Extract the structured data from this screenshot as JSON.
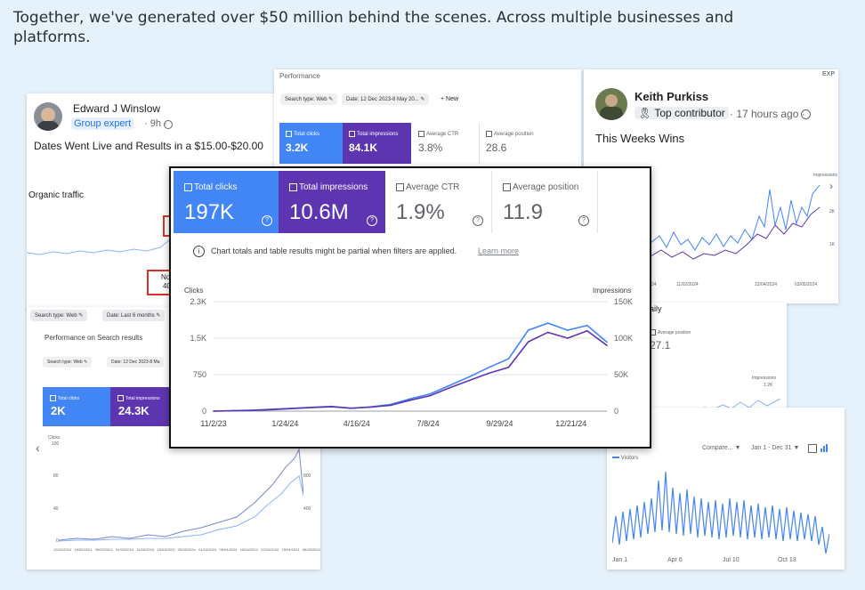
{
  "headline": "Together, we've generated over $50 million behind the scenes. Across multiple businesses and platforms.",
  "colors": {
    "clicks": "#4285f4",
    "impressions": "#5e35b1",
    "page_bg": "#e5f1fb"
  },
  "post_edward": {
    "name": "Edward J Winslow",
    "badge": "Group expert",
    "time": "· 9h ·",
    "text": "Dates Went Live and Results in a $15.00-$20.00",
    "organic_label": "Organic traffic",
    "note1": "No",
    "note2": "40"
  },
  "post_keith": {
    "name": "Keith Purkiss",
    "badge": "Top contributor",
    "time": "· 17 hours ago ·",
    "text": "This Weeks Wins",
    "y_label": "Impressions",
    "y_ticks": [
      "2K",
      "1K"
    ],
    "x_ticks": [
      "11/02/2024",
      "22/04/2024",
      "03/05/2024"
    ],
    "export_label": "EXP",
    "x_partial": "24"
  },
  "gsc_top": {
    "title": "Performance",
    "chip1": "Search type: Web",
    "chip2": "Date: 12 Dec 2023-8 May 20...",
    "new_label": "+  New",
    "tiles": [
      {
        "label": "Total clicks",
        "value": "3.2K"
      },
      {
        "label": "Total impressions",
        "value": "84.1K"
      },
      {
        "label": "Average CTR",
        "value": "3.8%"
      },
      {
        "label": "Average position",
        "value": "28.6"
      }
    ]
  },
  "gsc_left": {
    "chip1": "Search type: Web",
    "chip2": "Date: Last 6 months",
    "title": "Performance on Search results",
    "chip3": "Search type: Web",
    "chip4": "Date: 12 Dec 2023-8 Ma",
    "tiles": [
      {
        "label": "Total clicks",
        "value": "2K"
      },
      {
        "label": "Total impressions",
        "value": "24.3K"
      }
    ],
    "y_label": "Clicks",
    "y_ticks": [
      "100",
      "80",
      "40",
      "0"
    ],
    "y2_ticks": [
      "800",
      "400"
    ],
    "x_ticks": [
      "12/02/2024",
      "19/02/2024",
      "26/02/2024",
      "04/03/2024",
      "11/03/2024",
      "18/03/2024",
      "25/03/2024",
      "01/04/2024",
      "08/04/2024",
      "15/04/2024",
      "22/04/2024",
      "29/04/2024",
      "06/05/2024"
    ]
  },
  "gsc_mid": {
    "daily": "aily",
    "avg_pos_label": "Average position",
    "avg_pos_value": "27.1",
    "impr_label": "Impressions",
    "impr_tick": "1.2K"
  },
  "visitors": {
    "compare": "Compare...  ▼",
    "range": "Jan 1 - Dec 31 ▼",
    "legend": "Visitors",
    "x_ticks": [
      "Jan 1",
      "Apr 6",
      "Jul 10",
      "Oct 13"
    ]
  },
  "main": {
    "tiles": [
      {
        "label": "Total clicks",
        "value": "197K"
      },
      {
        "label": "Total impressions",
        "value": "10.6M"
      },
      {
        "label": "Average CTR",
        "value": "1.9%"
      },
      {
        "label": "Average position",
        "value": "11.9"
      }
    ],
    "notice": "Chart totals and table results might be partial when filters are applied.",
    "learn_more": "Learn more"
  },
  "chart_data": {
    "type": "line",
    "title": "",
    "xlabel": "",
    "ylabel": "Clicks",
    "y2label": "Impressions",
    "ylim": [
      0,
      2300
    ],
    "y2lim": [
      0,
      150000
    ],
    "y_ticks": [
      "2.3K",
      "1.5K",
      "750",
      "0"
    ],
    "y2_ticks": [
      "150K",
      "100K",
      "50K",
      "0"
    ],
    "x_ticks": [
      "11/2/23",
      "1/24/24",
      "4/16/24",
      "7/8/24",
      "9/29/24",
      "12/21/24"
    ],
    "x": [
      "11/2/23",
      "12/1/23",
      "1/1/24",
      "1/24/24",
      "2/20/24",
      "3/20/24",
      "4/16/24",
      "5/15/24",
      "6/10/24",
      "7/8/24",
      "8/5/24",
      "9/1/24",
      "9/29/24",
      "10/25/24",
      "11/20/24",
      "12/10/24",
      "12/21/24",
      "1/5/25",
      "1/20/25",
      "2/5/25",
      "2/20/25"
    ],
    "series": [
      {
        "name": "Clicks",
        "values": [
          0,
          10,
          20,
          40,
          60,
          80,
          100,
          60,
          90,
          140,
          260,
          360,
          540,
          720,
          920,
          1100,
          1700,
          1850,
          1700,
          1800,
          1450
        ]
      },
      {
        "name": "Impressions",
        "values": [
          0,
          500,
          1000,
          2000,
          3500,
          5000,
          6000,
          4000,
          5500,
          8000,
          15000,
          21000,
          32000,
          42000,
          52000,
          60000,
          95000,
          108000,
          100000,
          110000,
          90000
        ]
      }
    ]
  }
}
